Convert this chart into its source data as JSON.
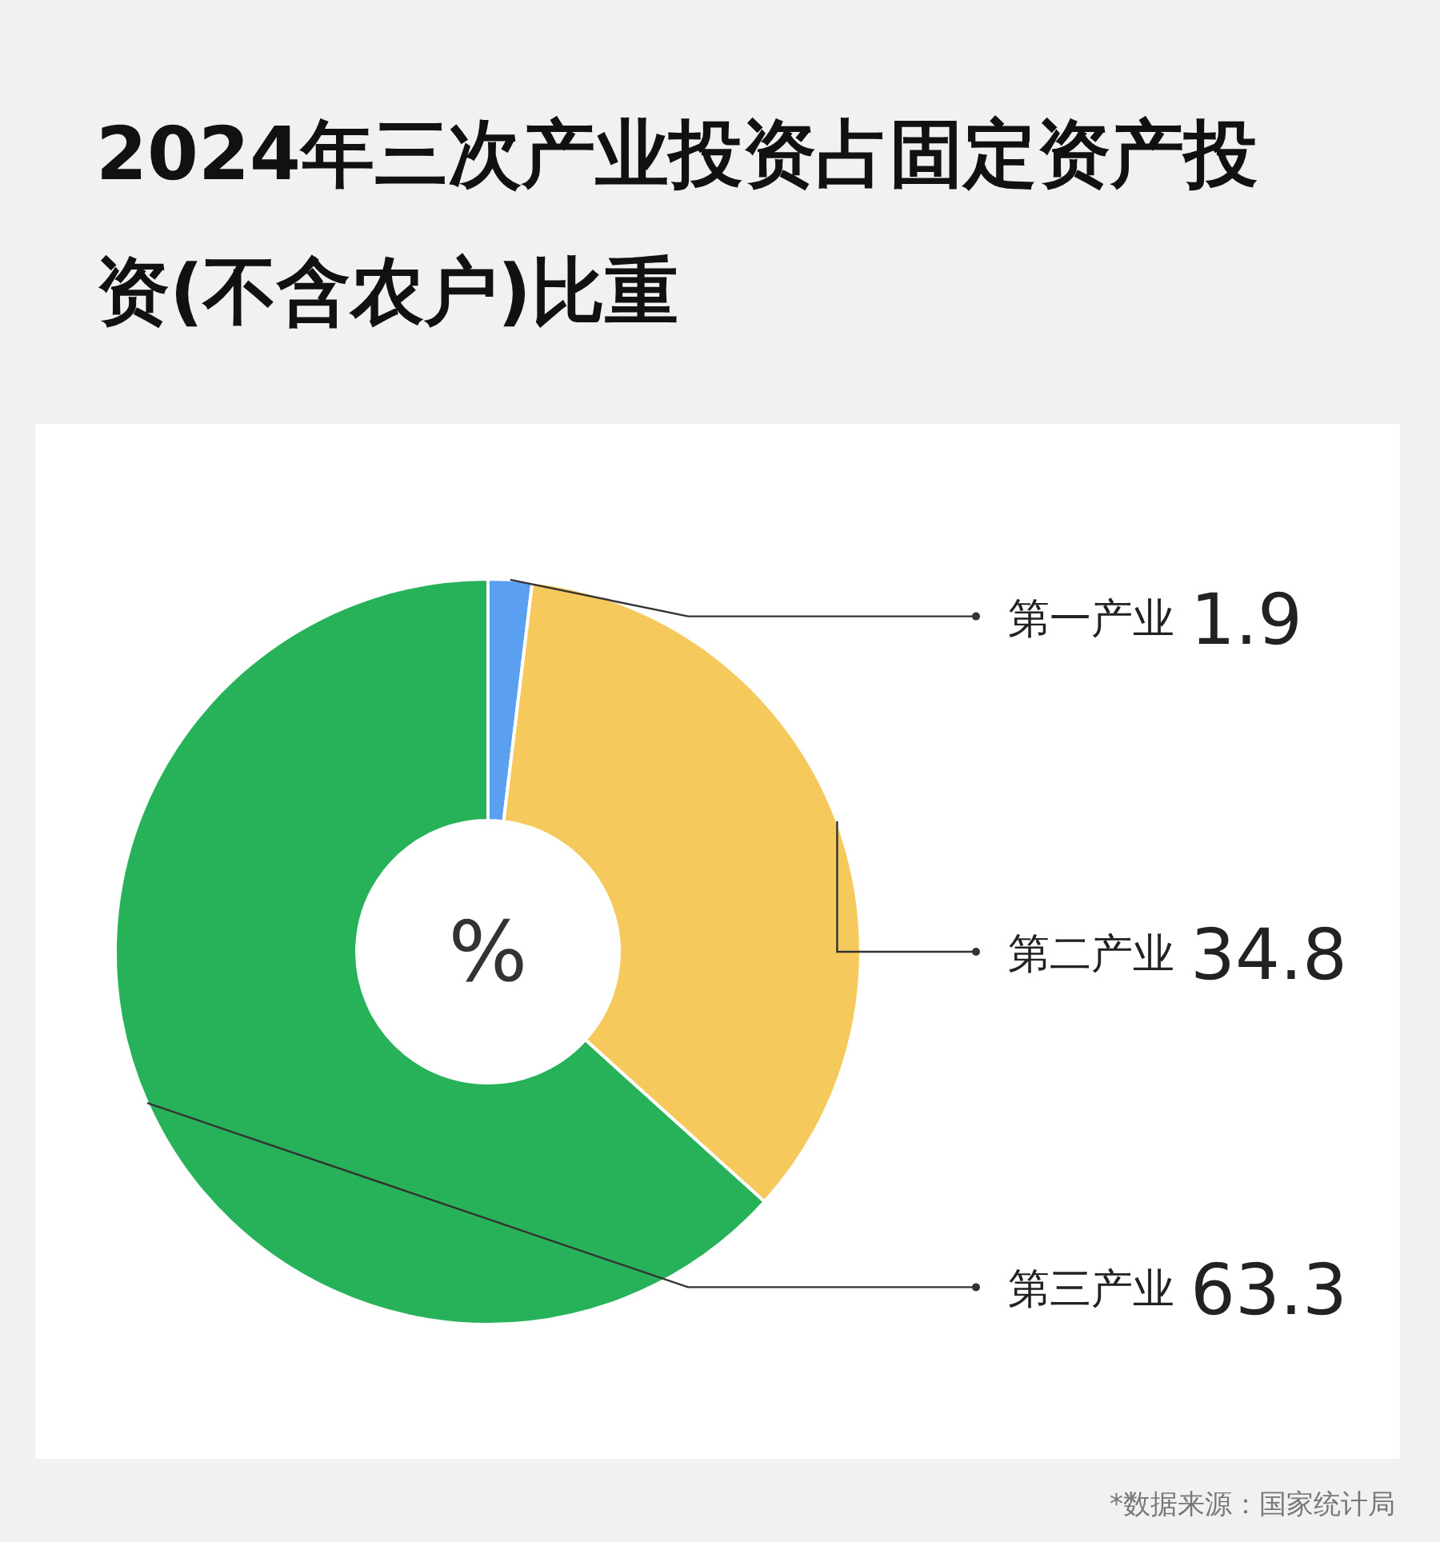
{
  "chart_data": {
    "type": "donut",
    "title": "2024年三次产业投资占固定资产投资(不含农户)比重",
    "categories": [
      "第一产业",
      "第二产业",
      "第三产业"
    ],
    "values": [
      1.9,
      34.8,
      63.3
    ],
    "colors": [
      "#5b9ff0",
      "#f5c95c",
      "#27b259"
    ],
    "data_labels": true,
    "annotations": [
      "%",
      "*数据来源：国家统计局"
    ]
  }
}
